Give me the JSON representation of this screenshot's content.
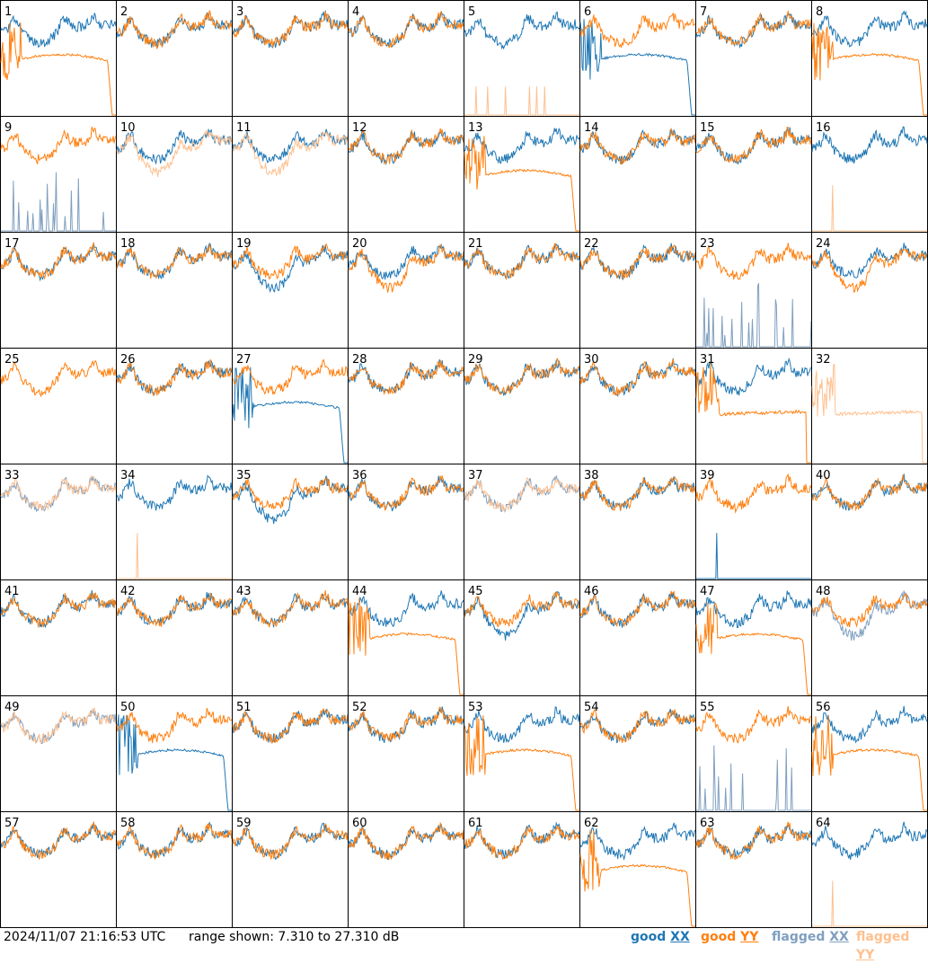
{
  "chart_data": {
    "type": "line",
    "grid": {
      "rows": 8,
      "cols": 8
    },
    "panel_labels": [
      "1",
      "2",
      "3",
      "4",
      "5",
      "6",
      "7",
      "8",
      "9",
      "10",
      "11",
      "12",
      "13",
      "14",
      "15",
      "16",
      "17",
      "18",
      "19",
      "20",
      "21",
      "22",
      "23",
      "24",
      "25",
      "26",
      "27",
      "28",
      "29",
      "30",
      "31",
      "32",
      "33",
      "34",
      "35",
      "36",
      "37",
      "38",
      "39",
      "40",
      "41",
      "42",
      "43",
      "44",
      "45",
      "46",
      "47",
      "48",
      "49",
      "50",
      "51",
      "52",
      "53",
      "54",
      "55",
      "56",
      "57",
      "58",
      "59",
      "60",
      "61",
      "62",
      "63",
      "64"
    ],
    "ylim": [
      7.31,
      27.31
    ],
    "series_styles": {
      "good_xx": {
        "color": "#1f77b4"
      },
      "good_yy": {
        "color": "#ff7f0e"
      },
      "flagged_xx": {
        "color": "#7f9fbf"
      },
      "flagged_yy": {
        "color": "#ffc08f"
      }
    },
    "panel_types": {
      "1": "yy_low",
      "5": "yy_flat",
      "6": "xx_low",
      "8": "yy_low",
      "9": "yy_only_xxflag",
      "10": "yy_flagged",
      "11": "yy_flagged",
      "13": "yy_low",
      "16": "xx_only_yyflat",
      "19": "xx_lower",
      "20": "yy_lower",
      "23": "yy_only_xxflag",
      "24": "yy_lower",
      "25": "yy_only",
      "27": "xx_low",
      "31": "yy_low_mid",
      "32": "yy_flagged_only",
      "33": "both_flagged",
      "34": "xx_only_yyflat",
      "35": "xx_lower",
      "37": "both_flagged",
      "39": "yy_only_xxspike",
      "44": "yy_low",
      "45": "xx_lower",
      "47": "yy_low",
      "48": "xx_flagged",
      "49": "both_flagged",
      "50": "xx_low",
      "53": "yy_low",
      "55": "yy_only_xxflag",
      "56": "yy_low",
      "62": "yy_low",
      "64": "xx_only_yyflat"
    },
    "legend": [
      "good XX",
      "good YY",
      "flagged XX",
      "flagged YY"
    ]
  },
  "footer": {
    "timestamp": "2024/11/07 21:16:53 UTC",
    "range": "range shown: 7.310 to 27.310 dB",
    "legend": [
      {
        "prefix": "good ",
        "pol": "XX",
        "color": "#1f77b4"
      },
      {
        "prefix": "good ",
        "pol": "YY",
        "color": "#ff7f0e"
      },
      {
        "prefix": "flagged ",
        "pol": "XX",
        "color": "#7f9fbf"
      },
      {
        "prefix": "flagged ",
        "pol": "YY",
        "color": "#ffc08f"
      }
    ]
  }
}
